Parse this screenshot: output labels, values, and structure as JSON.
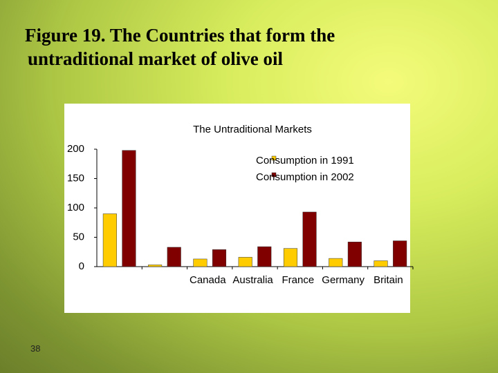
{
  "slide": {
    "title": [
      "Figure 19. The Countries that form the",
      "untraditional market of olive oil"
    ],
    "number": "38"
  },
  "chart_data": {
    "type": "bar",
    "title": "The Untraditional Markets",
    "categories": [
      null,
      null,
      "Canada",
      "Australia",
      "France",
      "Germany",
      "Britain"
    ],
    "series": [
      {
        "name": "Consumption in 1991",
        "color": "#ffcc00",
        "values": [
          90,
          3,
          13,
          16,
          31,
          14,
          10
        ]
      },
      {
        "name": "Consumption in 2002",
        "color": "#800000",
        "values": [
          198,
          33,
          29,
          34,
          93,
          42,
          44
        ]
      }
    ],
    "ylim": [
      0,
      200
    ],
    "yticks": [
      0,
      50,
      100,
      150,
      200
    ],
    "legend": "upper right",
    "grid": false
  }
}
